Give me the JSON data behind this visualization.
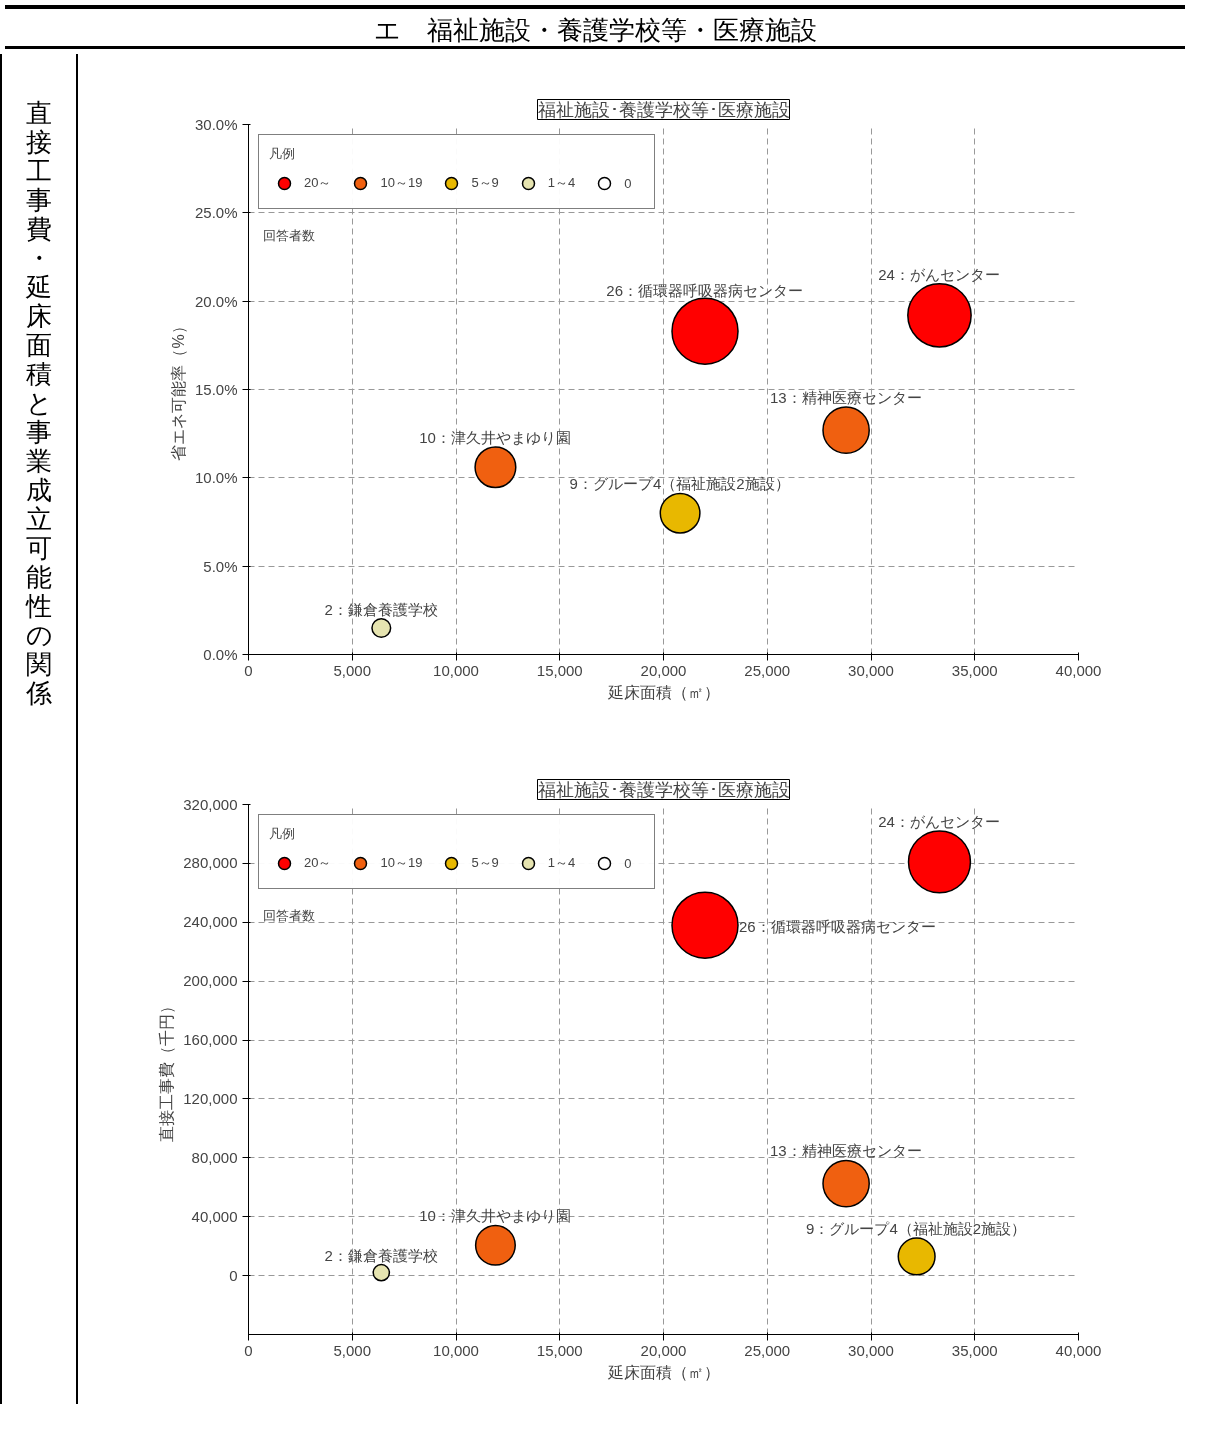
{
  "chart_data": [
    {
      "type": "other",
      "title": "エ　福祉施設・養護学校等・医療施設",
      "annotations": [
        "直接工事費・延床面積と事業成立可能性の関係"
      ]
    },
    {
      "type": "bubble",
      "title": "福祉施設･養護学校等･医療施設",
      "xlabel": "延床面積（㎡）",
      "ylabel": "省エネ可能率（%）",
      "legend_title": "凡例",
      "legend": "top left",
      "grid": true,
      "xlim": [
        0,
        40000
      ],
      "xticks": [
        0,
        {
          "value": 5000,
          "label": "5,000"
        },
        {
          "value": 10000,
          "label": "10,000"
        },
        {
          "value": 15000,
          "label": "15,000"
        },
        {
          "value": 20000,
          "label": "20,000"
        },
        {
          "value": 25000,
          "label": "25,000"
        },
        {
          "value": 30000,
          "label": "30,000"
        },
        {
          "value": 35000,
          "label": "35,000"
        },
        {
          "value": 40000,
          "label": "40,000"
        }
      ],
      "ylim": [
        0,
        30
      ],
      "yticks": [
        {
          "value": 0,
          "label": "0.0%"
        },
        {
          "value": 5,
          "label": "5.0%"
        },
        {
          "value": 10,
          "label": "10.0%"
        },
        {
          "value": 15,
          "label": "15.0%"
        },
        {
          "value": 20,
          "label": "20.0%"
        },
        {
          "value": 25,
          "label": "25.0%"
        },
        {
          "value": 30,
          "label": "30.0%"
        }
      ],
      "series": [
        {
          "name": "20～",
          "color": "#ff0000",
          "x": [
            22000,
            33300
          ],
          "values": [
            18.3,
            19.2
          ],
          "sizes": [
            1,
            0.92
          ]
        },
        {
          "name": "10～19",
          "color": "#f06010",
          "x": [
            11900,
            28800
          ],
          "values": [
            10.6,
            12.7
          ],
          "sizes": [
            0.38,
            0.49
          ]
        },
        {
          "name": "5～9",
          "color": "#e8b800",
          "x": [
            20800
          ],
          "values": [
            8.0
          ],
          "sizes": [
            0.36
          ]
        },
        {
          "name": "1～4",
          "color": "#e6e4b0",
          "x": [
            6400
          ],
          "values": [
            1.5
          ],
          "sizes": [
            0.08
          ]
        },
        {
          "name": "0",
          "color": "#ffffff"
        }
      ],
      "annotations": [
        "回答者数",
        {
          "text": "26：循環器呼吸器病センター",
          "x": 22000,
          "y": 18.3
        },
        {
          "text": "24：がんセンター",
          "x": 33300,
          "y": 19.2
        },
        {
          "text": "13：精神医療センター",
          "x": 28800,
          "y": 12.7
        },
        {
          "text": "10：津久井やまゆり園",
          "x": 11900,
          "y": 10.6
        },
        {
          "text": "9：グループ4（福祉施設2施設）",
          "x": 20800,
          "y": 8.0
        },
        {
          "text": "2：鎌倉養護学校",
          "x": 6400,
          "y": 1.5
        }
      ]
    },
    {
      "type": "bubble",
      "title": "福祉施設･養護学校等･医療施設",
      "xlabel": "延床面積（㎡）",
      "ylabel": "直接工事費（千円）",
      "legend_title": "凡例",
      "legend": "top left",
      "grid": true,
      "xlim": [
        0,
        40000
      ],
      "xticks": [
        0,
        {
          "value": 5000,
          "label": "5,000"
        },
        {
          "value": 10000,
          "label": "10,000"
        },
        {
          "value": 15000,
          "label": "15,000"
        },
        {
          "value": 20000,
          "label": "20,000"
        },
        {
          "value": 25000,
          "label": "25,000"
        },
        {
          "value": 30000,
          "label": "30,000"
        },
        {
          "value": 35000,
          "label": "35,000"
        },
        {
          "value": 40000,
          "label": "40,000"
        }
      ],
      "ylim": [
        -40000,
        320000
      ],
      "yticks": [
        0,
        {
          "value": 40000,
          "label": "40,000"
        },
        {
          "value": 80000,
          "label": "80,000"
        },
        {
          "value": 120000,
          "label": "120,000"
        },
        {
          "value": 160000,
          "label": "160,000"
        },
        {
          "value": 200000,
          "label": "200,000"
        },
        {
          "value": 240000,
          "label": "240,000"
        },
        {
          "value": 280000,
          "label": "280,000"
        },
        {
          "value": 320000,
          "label": "320,000"
        }
      ],
      "series": [
        {
          "name": "20～",
          "color": "#ff0000",
          "x": [
            22000,
            33300
          ],
          "values": [
            238000,
            281000
          ],
          "sizes": [
            1,
            0.88
          ]
        },
        {
          "name": "10～19",
          "color": "#f06010",
          "x": [
            11900,
            28800
          ],
          "values": [
            20600,
            62500
          ],
          "sizes": [
            0.36,
            0.49
          ]
        },
        {
          "name": "5～9",
          "color": "#e8b800",
          "x": [
            32200
          ],
          "values": [
            13000
          ],
          "sizes": [
            0.31
          ]
        },
        {
          "name": "1～4",
          "color": "#e6e4b0",
          "x": [
            6400
          ],
          "values": [
            2000
          ],
          "sizes": [
            0.06
          ]
        },
        {
          "name": "0",
          "color": "#ffffff"
        }
      ],
      "annotations": [
        "回答者数",
        {
          "text": "26：循環器呼吸器病センター",
          "x": 22000,
          "y": 238000
        },
        {
          "text": "24：がんセンター",
          "x": 33300,
          "y": 281000
        },
        {
          "text": "13：精神医療センター",
          "x": 28800,
          "y": 62500
        },
        {
          "text": "10：津久井やまゆり園",
          "x": 11900,
          "y": 20600
        },
        {
          "text": "9：グループ4（福祉施設2施設）",
          "x": 32200,
          "y": 13000
        },
        {
          "text": "2：鎌倉養護学校",
          "x": 6400,
          "y": 2000
        }
      ]
    }
  ]
}
